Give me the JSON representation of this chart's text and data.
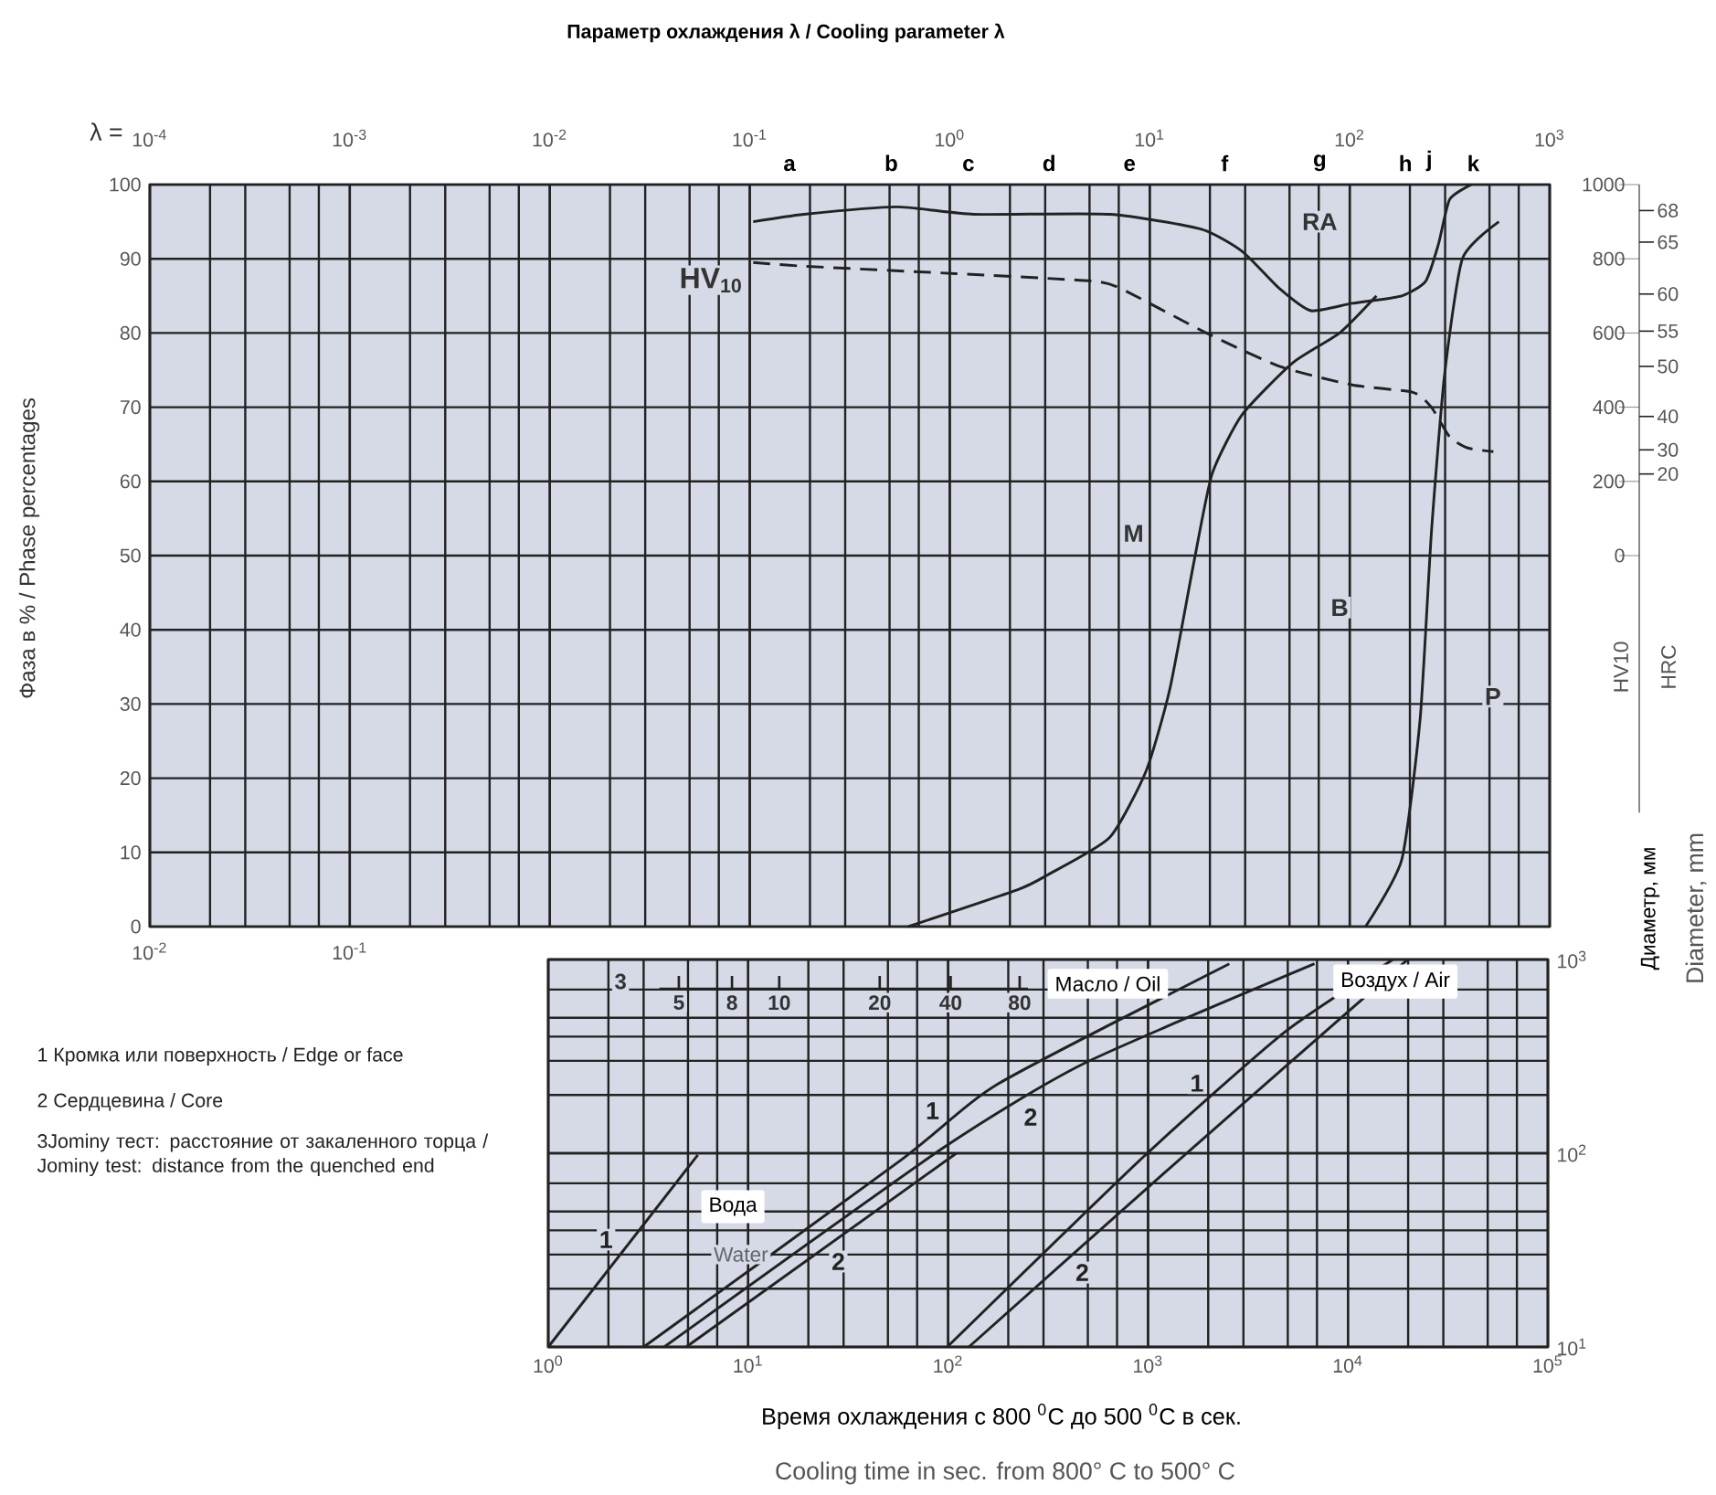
{
  "chart_data": [
    {
      "type": "line",
      "title": "Параметр охлаждения λ / Cooling parameter λ",
      "xlabel": "λ =",
      "ylabel": "Фаза в % / Phase percentages",
      "y2label": "HV10",
      "log": "x",
      "grid": true,
      "xlim": [
        0.0001,
        1000
      ],
      "xticks": [
        {
          "value": 0.0001,
          "label": "10$^{-4}$"
        },
        {
          "value": 0.001,
          "label": "10$^{-3}$"
        },
        {
          "value": 0.01,
          "label": "10$^{-2}$"
        },
        {
          "value": 0.1,
          "label": "10$^{-1}$"
        },
        {
          "value": 1,
          "label": "10$^{0}$"
        },
        {
          "value": 10,
          "label": "10$^{1}$"
        },
        {
          "value": 100,
          "label": "10$^{2}$"
        },
        {
          "value": 1000,
          "label": "10$^{3}$"
        }
      ],
      "ylim": [
        0,
        100
      ],
      "yticks": [
        0,
        10,
        20,
        30,
        40,
        50,
        60,
        70,
        80,
        90,
        100
      ],
      "y2lim": [
        -1000,
        1000
      ],
      "y2ticks": [
        0,
        200,
        400,
        600,
        800,
        1000
      ],
      "series": [
        {
          "color": "#222222",
          "line_style": "solid",
          "x": [
            0.104,
            0.187,
            0.54,
            1.32,
            6.3,
            18,
            29,
            44.5,
            64,
            103,
            182,
            240,
            278,
            316,
            406
          ],
          "values": [
            95,
            96,
            97,
            96,
            96,
            94,
            91,
            86,
            83,
            84,
            85,
            87,
            92,
            98,
            100
          ]
        },
        {
          "color": "#222222",
          "line_style": "solid",
          "x": [
            0.62,
            2.2,
            3.1,
            6.3,
            9.6,
            12.6,
            16.6,
            20.5,
            29,
            52,
            89,
            136
          ],
          "values": [
            0,
            5,
            7,
            12,
            21,
            32,
            49,
            61,
            69,
            76,
            80,
            85
          ]
        },
        {
          "color": "#222222",
          "line_style": "solid",
          "x": [
            120,
            182,
            225,
            256,
            297,
            366,
            557
          ],
          "values": [
            0,
            9,
            28,
            53,
            74,
            90,
            95
          ]
        },
        {
          "name": "HV$_{10}$",
          "color": "#222222",
          "line_style": "dashed",
          "axis": "y2",
          "x": [
            0.104,
            0.187,
            1.07,
            5.1,
            7.14,
            19.2,
            44.5,
            103,
            207,
            256,
            316,
            390,
            523
          ],
          "values": [
            790,
            780,
            760,
            740,
            720,
            600,
            510,
            460,
            440,
            400,
            320,
            290,
            280
          ]
        }
      ],
      "annotations": [
        "RA",
        "M",
        "B",
        "P",
        "a",
        "b",
        "c",
        "d",
        "e",
        "f",
        "g",
        "h",
        "j",
        "k",
        "HRC",
        "68",
        "65",
        "60",
        "55",
        "50",
        "40",
        "30",
        "20",
        "10$^{-2}$",
        "10$^{-1}$"
      ]
    },
    {
      "type": "line",
      "xlabel": "Время охлаждения с 800 $^{0}$C до 500 $^{0}$C в сек.",
      "ylabel": "Диаметр, мм",
      "log": "xy",
      "grid": true,
      "xlim": [
        1,
        100000
      ],
      "xticks": [
        {
          "value": 1,
          "label": "10$^{0}$"
        },
        {
          "value": 10,
          "label": "10$^{1}$"
        },
        {
          "value": 100,
          "label": "10$^{2}$"
        },
        {
          "value": 1000,
          "label": "10$^{3}$"
        },
        {
          "value": 10000,
          "label": "10$^{4}$"
        },
        {
          "value": 100000,
          "label": "10$^{5}$"
        }
      ],
      "ylim": [
        10,
        1000
      ],
      "yticks": [
        {
          "value": 10,
          "label": "10$^{1}$"
        },
        {
          "value": 100,
          "label": "10$^{2}$"
        },
        {
          "value": 1000,
          "label": "10$^{3}$"
        }
      ],
      "series": [
        {
          "name": "1",
          "color": "#222222",
          "x": [
            1,
            5.6
          ],
          "values": [
            10,
            98
          ]
        },
        {
          "name": "2",
          "color": "#222222",
          "x": [
            4.9,
            110
          ],
          "values": [
            10,
            100
          ]
        },
        {
          "name": "1",
          "color": "#222222",
          "x": [
            3,
            58,
            178,
            2550
          ],
          "values": [
            10,
            92,
            228,
            950
          ]
        },
        {
          "name": "2",
          "color": "#222222",
          "x": [
            3.8,
            95,
            476,
            6800
          ],
          "values": [
            10,
            107,
            290,
            950
          ]
        },
        {
          "name": "1",
          "color": "#222222",
          "x": [
            99,
            950,
            4800,
            16800
          ],
          "values": [
            10,
            96,
            420,
            1000
          ]
        },
        {
          "name": "2",
          "color": "#222222",
          "x": [
            127,
            1170,
            19900
          ],
          "values": [
            10,
            77,
            1000
          ]
        }
      ],
      "annotations": [
        "Cooling time in sec. from 800° C to 500° C",
        "1 Кромка или поверхность / Edge or face",
        "2 Сердцевина / Core",
        "3Jominy тест: расстояние от  закаленного торца / Jominy test: distance  from the quenched end",
        "Diameter, mm",
        "Вода",
        "Water",
        "Масло / Oil",
        "Воздух / Air",
        "3",
        "5",
        "8",
        "10",
        "20",
        "40",
        "80"
      ]
    }
  ]
}
